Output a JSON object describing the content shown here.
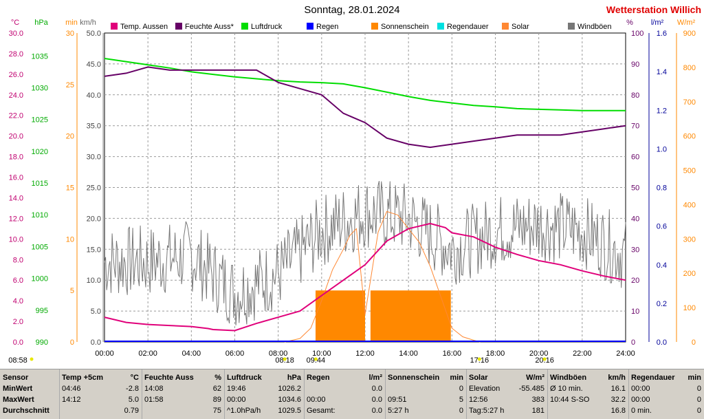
{
  "header": {
    "title": "Sonntag, 28.01.2024",
    "station": "Wetterstation Willich"
  },
  "axes": {
    "left_units": [
      "°C",
      "hPa",
      "min",
      "km/h"
    ],
    "right_units": [
      "%",
      "l/m²",
      "W/m²"
    ],
    "temp_ticks": [
      "30.0",
      "28.0",
      "26.0",
      "24.0",
      "22.0",
      "20.0",
      "18.0",
      "16.0",
      "14.0",
      "12.0",
      "10.0",
      "8.0",
      "6.0",
      "4.0",
      "2.0",
      "0.0"
    ],
    "hpa_ticks": [
      "1035",
      "1030",
      "1025",
      "1020",
      "1015",
      "1010",
      "1005",
      "1000",
      "995",
      "990"
    ],
    "min_ticks": [
      "30",
      "25",
      "20",
      "15",
      "10",
      "5",
      "0"
    ],
    "kmh_ticks": [
      "50.0",
      "45.0",
      "40.0",
      "35.0",
      "30.0",
      "25.0",
      "20.0",
      "15.0",
      "10.0",
      "5.0",
      "0.0"
    ],
    "pct_ticks": [
      "100",
      "90",
      "80",
      "70",
      "60",
      "50",
      "40",
      "30",
      "20",
      "10",
      "0"
    ],
    "lm2_ticks": [
      "1.6",
      "1.4",
      "1.2",
      "1.0",
      "0.8",
      "0.6",
      "0.4",
      "0.2",
      "0.0"
    ],
    "wm2_ticks": [
      "900",
      "800",
      "700",
      "600",
      "500",
      "400",
      "300",
      "200",
      "100",
      "0"
    ],
    "x_ticks": [
      "00:00",
      "02:00",
      "04:00",
      "06:00",
      "08:00",
      "10:00",
      "12:00",
      "14:00",
      "16:00",
      "18:00",
      "20:00",
      "22:00",
      "24:00"
    ],
    "markers": [
      {
        "label": "08:58",
        "pos": "far-left"
      },
      {
        "label": "08:18",
        "time": "08:18"
      },
      {
        "label": "09:44",
        "time": "09:44"
      },
      {
        "label": "17:16",
        "time": "17:16"
      },
      {
        "label": "20:16",
        "time": "20:16"
      }
    ]
  },
  "legend": [
    {
      "name": "Temp. Aussen",
      "color": "#e0007a"
    },
    {
      "name": "Feuchte Auss*",
      "color": "#660066"
    },
    {
      "name": "Luftdruck",
      "color": "#00dd00"
    },
    {
      "name": "Regen",
      "color": "#0000ff"
    },
    {
      "name": "Sonnenschein",
      "color": "#ff8800"
    },
    {
      "name": "Regendauer",
      "color": "#00e0e0"
    },
    {
      "name": "Solar",
      "color": "#ff8833"
    },
    {
      "name": "Windböen",
      "color": "#777777"
    }
  ],
  "chart_data": {
    "type": "line",
    "x_range": [
      "00:00",
      "24:00"
    ],
    "grid": true,
    "series": [
      {
        "name": "Temp. Aussen",
        "unit": "°C",
        "x": [
          0,
          1,
          2,
          3,
          4,
          4.77,
          5,
          6,
          7,
          8,
          9,
          10,
          11,
          12,
          13,
          14,
          15,
          15.7,
          16,
          17,
          18,
          19,
          20,
          21,
          22,
          23,
          24
        ],
        "y": [
          2.4,
          1.9,
          1.7,
          1.6,
          1.5,
          1.3,
          1.2,
          1.1,
          1.8,
          2.4,
          3.0,
          4.5,
          6.0,
          7.5,
          9.8,
          11.0,
          11.5,
          11.1,
          10.6,
          10.2,
          9.2,
          8.5,
          7.9,
          7.5,
          6.9,
          6.4,
          6.0
        ]
      },
      {
        "name": "Feuchte Auss*",
        "unit": "%",
        "x": [
          0,
          1,
          2,
          3,
          4,
          5,
          6,
          7,
          8,
          9,
          10,
          11,
          12,
          13,
          14,
          15,
          16,
          17,
          18,
          19,
          20,
          21,
          22,
          23,
          24
        ],
        "y": [
          86,
          87,
          89,
          88,
          88,
          88,
          88,
          88,
          84,
          82,
          80,
          74,
          71,
          66,
          64,
          63,
          64,
          65,
          66,
          67,
          67,
          67,
          68,
          69,
          70
        ]
      },
      {
        "name": "Luftdruck",
        "unit": "hPa",
        "x": [
          0,
          1,
          2,
          3,
          4,
          5,
          6,
          7,
          8,
          9,
          10,
          11,
          12,
          13,
          14,
          15,
          16,
          17,
          18,
          19,
          20,
          21,
          22,
          23,
          24
        ],
        "y": [
          1034.6,
          1034.1,
          1033.6,
          1033.1,
          1032.5,
          1032.1,
          1031.7,
          1031.4,
          1031.1,
          1030.9,
          1030.8,
          1030.6,
          1030.0,
          1029.3,
          1028.6,
          1028.0,
          1027.6,
          1027.2,
          1027.0,
          1026.7,
          1026.6,
          1026.5,
          1026.4,
          1026.4,
          1026.4
        ]
      },
      {
        "name": "Solar",
        "unit": "W/m²",
        "x": [
          8.3,
          9,
          9.5,
          10,
          10.5,
          11,
          11.3,
          11.6,
          12,
          12.3,
          12.6,
          13,
          13.5,
          14,
          14.5,
          15,
          15.5,
          16,
          16.5,
          17,
          17.3
        ],
        "y": [
          0,
          10,
          40,
          120,
          210,
          270,
          310,
          330,
          80,
          200,
          320,
          380,
          370,
          330,
          290,
          220,
          130,
          40,
          15,
          5,
          0
        ]
      },
      {
        "name": "Sonnenschein",
        "unit": "min",
        "bars": [
          {
            "from": 9.72,
            "to": 12.0,
            "value": 5
          },
          {
            "from": 12.25,
            "to": 15.95,
            "value": 5
          }
        ]
      },
      {
        "name": "Windböen",
        "unit": "km/h",
        "x": [
          0,
          2,
          4,
          6,
          8,
          10,
          12,
          14,
          16,
          18,
          20,
          22,
          24
        ],
        "y": [
          13,
          13,
          14,
          8,
          11,
          18,
          21,
          20,
          15,
          18,
          19,
          18,
          14
        ]
      },
      {
        "name": "Regen",
        "unit": "l/m²",
        "y": [
          0
        ]
      },
      {
        "name": "Regendauer",
        "unit": "min",
        "y": [
          0
        ]
      }
    ]
  },
  "table": {
    "row_labels": [
      "Sensor",
      "MinWert",
      "MaxWert",
      "Durchschnitt"
    ],
    "columns": [
      {
        "head_l": "Temp +5cm",
        "head_r": "°C",
        "rows": [
          [
            "04:46",
            "-2.8"
          ],
          [
            "14:12",
            "5.0"
          ],
          [
            "",
            "0.79"
          ]
        ]
      },
      {
        "head_l": "Feuchte Auss",
        "head_r": "%",
        "rows": [
          [
            "14:08",
            "62"
          ],
          [
            "01:58",
            "89"
          ],
          [
            "",
            "75"
          ]
        ]
      },
      {
        "head_l": "Luftdruck",
        "head_r": "hPa",
        "rows": [
          [
            "19:46",
            "1026.2"
          ],
          [
            "00:00",
            "1034.6"
          ],
          [
            "^1.0hPa/h",
            "1029.5"
          ]
        ]
      },
      {
        "head_l": "Regen",
        "head_r": "l/m²",
        "rows": [
          [
            "",
            "0.0"
          ],
          [
            "00:00",
            "0.0"
          ],
          [
            "Gesamt:",
            "0.0"
          ]
        ]
      },
      {
        "head_l": "Sonnenschein",
        "head_r": "min",
        "rows": [
          [
            "",
            "0"
          ],
          [
            "09:51",
            "5"
          ],
          [
            "5:27 h",
            "0"
          ]
        ]
      },
      {
        "head_l": "Solar",
        "head_r": "W/m²",
        "rows": [
          [
            "Elevation",
            "-55.485"
          ],
          [
            "12:56",
            "383"
          ],
          [
            "Tag:5:27 h",
            "181"
          ]
        ]
      },
      {
        "head_l": "Windböen",
        "head_r": "km/h",
        "rows": [
          [
            "Ø 10 min.",
            "16.1"
          ],
          [
            "10:44   S-SO",
            "32.2"
          ],
          [
            "",
            "16.8"
          ]
        ]
      },
      {
        "head_l": "Regendauer",
        "head_r": "min",
        "rows": [
          [
            "00:00",
            "0"
          ],
          [
            "00:00",
            "0"
          ],
          [
            "0 min.",
            "0"
          ]
        ]
      }
    ]
  }
}
